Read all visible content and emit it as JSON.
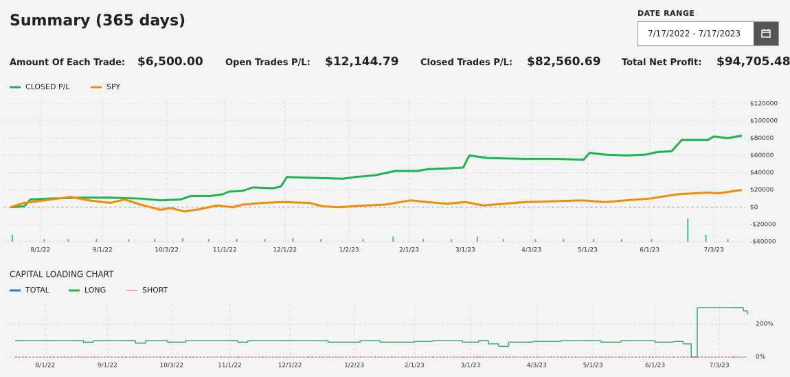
{
  "header": {
    "title": "Summary (365 days)",
    "date_range_label": "DATE RANGE",
    "date_range": "7/17/2022 - 7/17/2023"
  },
  "stats": [
    {
      "label": "Amount Of Each Trade:",
      "value": "$6,500.00"
    },
    {
      "label": "Open Trades P/L:",
      "value": "$12,144.79"
    },
    {
      "label": "Closed Trades P/L:",
      "value": "$82,560.69"
    },
    {
      "label": "Total Net Profit:",
      "value": "$94,705.48"
    }
  ],
  "chart_data": [
    {
      "type": "line",
      "xlim": [
        "7/17/22",
        "7/17/23"
      ],
      "xticks": [
        "8/1/22",
        "9/1/22",
        "10/3/22",
        "11/1/22",
        "12/1/22",
        "1/2/23",
        "2/1/23",
        "3/1/23",
        "4/3/23",
        "5/1/23",
        "6/1/23",
        "7/3/23"
      ],
      "ylim": [
        -40000,
        120000
      ],
      "yticks": [
        {
          "value": -40000,
          "label": "-$40000"
        },
        {
          "value": -20000,
          "label": "-$20000"
        },
        {
          "value": 0,
          "label": "$0"
        },
        {
          "value": 20000,
          "label": "$20000"
        },
        {
          "value": 40000,
          "label": "$40000"
        },
        {
          "value": 60000,
          "label": "$60000"
        },
        {
          "value": 80000,
          "label": "$80000"
        },
        {
          "value": 100000,
          "label": "$100000"
        },
        {
          "value": 120000,
          "label": "$120000"
        }
      ],
      "grid": true,
      "series": [
        {
          "name": "CLOSED P/L",
          "color": "#1fb350",
          "x": [
            "7/17/22",
            "7/24/22",
            "7/27/22",
            "8/5/22",
            "8/20/22",
            "9/5/22",
            "9/20/22",
            "9/30/22",
            "10/10/22",
            "10/15/22",
            "10/25/22",
            "10/31/22",
            "11/3/22",
            "11/10/22",
            "11/15/22",
            "11/25/22",
            "11/29/22",
            "12/2/22",
            "12/15/22",
            "12/30/22",
            "1/5/23",
            "1/15/23",
            "1/25/23",
            "2/5/23",
            "2/10/23",
            "2/20/23",
            "2/28/23",
            "3/3/23",
            "3/12/23",
            "3/31/23",
            "4/15/23",
            "4/29/23",
            "5/2/23",
            "5/10/23",
            "5/20/23",
            "5/30/23",
            "6/5/23",
            "6/12/23",
            "6/17/23",
            "6/30/23",
            "7/3/23",
            "7/10/23",
            "7/17/23"
          ],
          "values": [
            0,
            1000,
            9000,
            10000,
            11000,
            11000,
            10000,
            8000,
            9000,
            13000,
            13000,
            15000,
            18000,
            19000,
            23000,
            22000,
            24000,
            35000,
            34000,
            33000,
            35000,
            37000,
            42000,
            42000,
            44000,
            45000,
            46000,
            60000,
            57000,
            56000,
            56000,
            55000,
            63000,
            61000,
            60000,
            61000,
            64000,
            65000,
            78000,
            78000,
            82000,
            80000,
            83000
          ]
        },
        {
          "name": "SPY",
          "color": "#f28c00",
          "x": [
            "7/17/22",
            "7/24/22",
            "8/10/22",
            "8/16/22",
            "8/25/22",
            "9/5/22",
            "9/12/22",
            "9/20/22",
            "9/30/22",
            "10/5/22",
            "10/12/22",
            "10/20/22",
            "10/28/22",
            "11/5/22",
            "11/10/22",
            "11/20/22",
            "11/30/22",
            "12/13/22",
            "12/20/22",
            "12/28/22",
            "1/10/23",
            "1/20/23",
            "2/2/23",
            "2/10/23",
            "2/20/23",
            "3/1/23",
            "3/10/23",
            "3/15/23",
            "3/31/23",
            "4/15/23",
            "4/28/23",
            "5/10/23",
            "5/20/23",
            "6/1/23",
            "6/15/23",
            "6/30/23",
            "7/5/23",
            "7/17/23"
          ],
          "values": [
            0,
            5000,
            10000,
            12000,
            8000,
            5000,
            9000,
            3000,
            -3000,
            -1000,
            -5000,
            -2000,
            2000,
            0,
            3000,
            5000,
            6000,
            5000,
            1000,
            0,
            2000,
            3000,
            8000,
            6000,
            4000,
            6000,
            2000,
            3000,
            6000,
            7000,
            8000,
            6000,
            8000,
            10000,
            15000,
            17000,
            16000,
            20000
          ]
        }
      ],
      "bars": {
        "color": "#3cc878",
        "x": [
          "7/18/22",
          "8/3/22",
          "8/15/22",
          "8/29/22",
          "9/14/22",
          "9/27/22",
          "10/11/22",
          "10/24/22",
          "11/7/22",
          "11/21/22",
          "12/5/22",
          "12/19/22",
          "1/9/23",
          "1/24/23",
          "2/8/23",
          "2/22/23",
          "3/7/23",
          "3/20/23",
          "4/5/23",
          "4/19/23",
          "5/4/23",
          "5/18/23",
          "6/2/23",
          "6/20/23",
          "6/29/23",
          "7/10/23"
        ],
        "values": [
          -32000,
          -37000,
          -37000,
          -37000,
          -37000,
          -37000,
          -36000,
          -37000,
          -37000,
          -37000,
          -36000,
          -37000,
          -37000,
          -34000,
          -37000,
          -37000,
          -34000,
          -37000,
          -37000,
          -37000,
          -37000,
          -37000,
          -37000,
          -13000,
          -32000,
          -37000
        ]
      }
    },
    {
      "type": "line",
      "title": "CAPITAL LOADING CHART",
      "step": true,
      "xlim": [
        "7/17/22",
        "7/17/23"
      ],
      "xticks": [
        "8/1/22",
        "9/1/22",
        "10/3/22",
        "11/1/22",
        "12/1/22",
        "1/2/23",
        "2/1/23",
        "3/1/23",
        "4/3/23",
        "5/1/23",
        "6/1/23",
        "7/3/23"
      ],
      "ylim": [
        0,
        300
      ],
      "yticks": [
        {
          "value": 0,
          "label": "0%"
        },
        {
          "value": 200,
          "label": "200%"
        }
      ],
      "grid": true,
      "x": [
        "7/17/22",
        "8/5/22",
        "8/20/22",
        "8/25/22",
        "9/10/22",
        "9/15/22",
        "9/20/22",
        "10/1/22",
        "10/10/22",
        "11/1/22",
        "11/5/22",
        "11/10/22",
        "12/10/22",
        "12/20/22",
        "1/5/23",
        "1/15/23",
        "2/1/23",
        "2/10/23",
        "2/25/23",
        "3/5/23",
        "3/10/23",
        "3/15/23",
        "3/20/23",
        "4/1/23",
        "4/15/23",
        "5/5/23",
        "5/15/23",
        "6/1/23",
        "6/10/23",
        "6/15/23",
        "6/19/23",
        "6/22/23",
        "7/10/23",
        "7/15/23",
        "7/17/23"
      ],
      "series": [
        {
          "name": "TOTAL",
          "color": "#3a6fd8",
          "values": [
            100,
            100,
            90,
            100,
            100,
            85,
            100,
            90,
            100,
            100,
            90,
            100,
            100,
            90,
            100,
            90,
            95,
            100,
            90,
            100,
            80,
            65,
            90,
            95,
            100,
            90,
            100,
            90,
            95,
            80,
            0,
            300,
            300,
            280,
            260
          ]
        },
        {
          "name": "LONG",
          "color": "#2fb34f",
          "values": [
            100,
            100,
            90,
            100,
            100,
            85,
            100,
            90,
            100,
            100,
            90,
            100,
            100,
            90,
            100,
            90,
            95,
            100,
            90,
            100,
            80,
            65,
            90,
            95,
            100,
            90,
            100,
            90,
            95,
            80,
            0,
            300,
            300,
            280,
            260
          ]
        },
        {
          "name": "SHORT",
          "color": "#e05a5a",
          "values": [
            0,
            0,
            0,
            0,
            0,
            0,
            0,
            0,
            0,
            0,
            0,
            0,
            0,
            0,
            0,
            0,
            0,
            0,
            0,
            0,
            0,
            0,
            0,
            0,
            0,
            0,
            0,
            0,
            0,
            0,
            0,
            0,
            0,
            0,
            0
          ]
        }
      ]
    }
  ]
}
